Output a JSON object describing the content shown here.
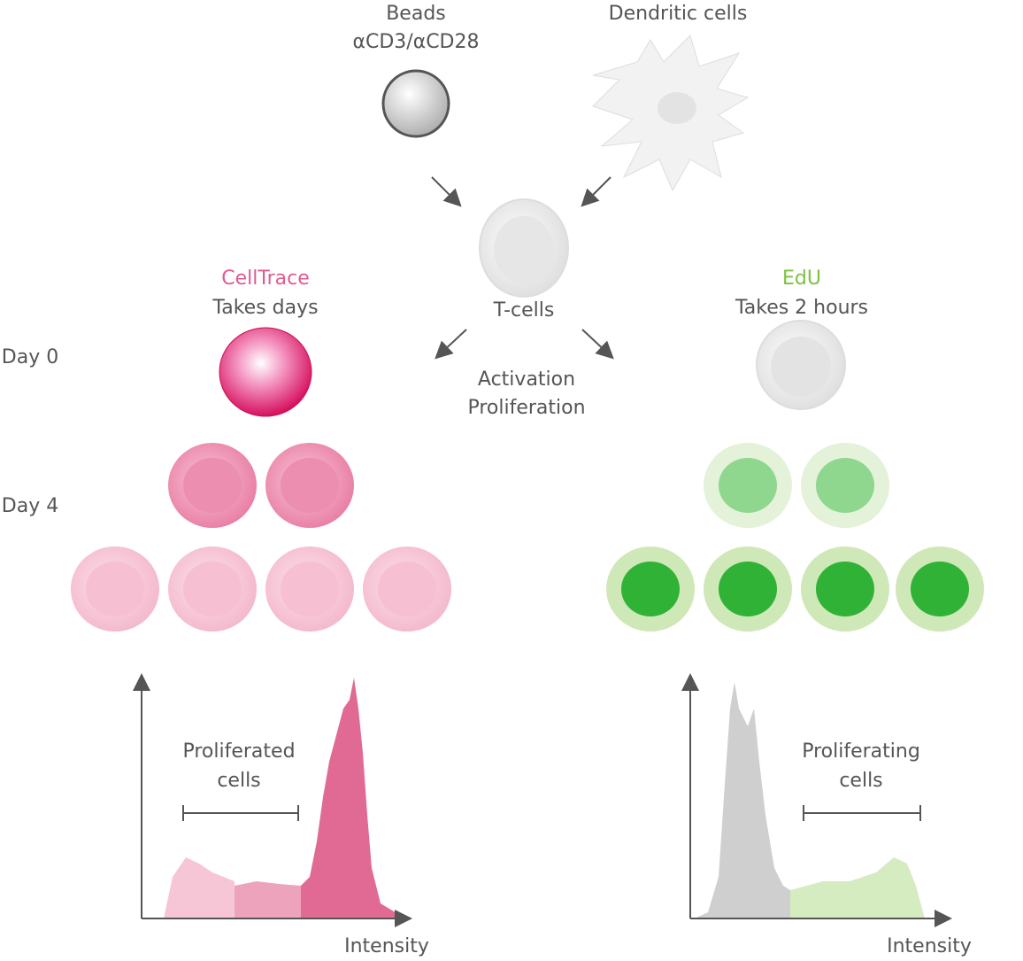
{
  "inputs": {
    "beads": {
      "label": "Beads",
      "sublabel": "αCD3/αCD28"
    },
    "dendritic": {
      "label": "Dendritic cells"
    }
  },
  "center": {
    "label": "T-cells",
    "process": [
      "Activation",
      "Proliferation"
    ]
  },
  "days": [
    "Day 0",
    "Day 4"
  ],
  "methods": [
    {
      "name": "CellTrace",
      "duration": "Takes days",
      "annotation": [
        "Proliferated",
        "cells"
      ],
      "x_label": "Intensity"
    },
    {
      "name": "EdU",
      "duration": "Takes 2 hours",
      "annotation": [
        "Proliferating",
        "cells"
      ],
      "x_label": "Intensity"
    }
  ]
}
